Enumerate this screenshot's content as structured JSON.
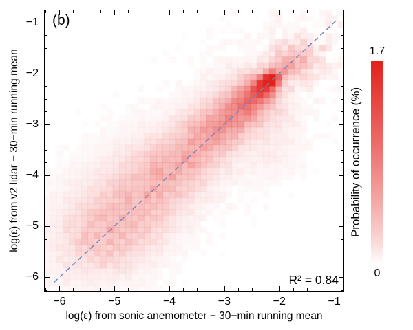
{
  "panel_label": "(b)",
  "annotation": {
    "r_squared_label": "R² = 0.84"
  },
  "axes": {
    "xlabel": "log(ε) from sonic anemometer − 30−min running mean",
    "ylabel": "log(ε) from v2 lidar − 30−min running mean",
    "x_ticks": [
      -6,
      -5,
      -4,
      -3,
      -2,
      -1
    ],
    "y_ticks": [
      -6,
      -5,
      -4,
      -3,
      -2,
      -1
    ]
  },
  "colorbar": {
    "label": "Probability of occurrence (%)",
    "min": 0,
    "max": 1.7,
    "min_label": "0",
    "max_label": "1.7"
  },
  "chart_data": {
    "type": "heatmap",
    "title": "(b)",
    "xlabel": "log(ε) from sonic anemometer − 30−min running mean",
    "ylabel": "log(ε) from v2 lidar − 30−min running mean",
    "x_range": [
      -6.28,
      -0.82
    ],
    "y_range": [
      -6.28,
      -0.75
    ],
    "x_tick_values": [
      -6,
      -5,
      -4,
      -3,
      -2,
      -1
    ],
    "y_tick_values": [
      -6,
      -5,
      -4,
      -3,
      -2,
      -1
    ],
    "colorbar_label": "Probability of occurrence (%)",
    "colorbar_range": [
      0,
      1.7
    ],
    "r_squared": 0.84,
    "heat_color": "#e2211c",
    "identity_line": {
      "style": "dashed",
      "color": "#7286c8",
      "from": [
        -6.1,
        -6.1
      ],
      "to": [
        -0.93,
        -0.93
      ]
    },
    "bins": 48,
    "density_model_blobs": [
      {
        "x": -2.15,
        "y": -2.12,
        "sx": 0.1,
        "sy": 0.09,
        "a": 1.7
      },
      {
        "x": -2.28,
        "y": -2.25,
        "sx": 0.15,
        "sy": 0.13,
        "a": 1.0
      },
      {
        "x": -2.45,
        "y": -2.43,
        "sx": 0.2,
        "sy": 0.17,
        "a": 0.62
      },
      {
        "x": -2.7,
        "y": -2.67,
        "sx": 0.25,
        "sy": 0.22,
        "a": 0.46
      },
      {
        "x": -3.0,
        "y": -2.97,
        "sx": 0.3,
        "sy": 0.26,
        "a": 0.36
      },
      {
        "x": -3.35,
        "y": -3.3,
        "sx": 0.35,
        "sy": 0.3,
        "a": 0.29
      },
      {
        "x": -3.8,
        "y": -3.72,
        "sx": 0.4,
        "sy": 0.34,
        "a": 0.23
      },
      {
        "x": -4.2,
        "y": -4.15,
        "sx": 0.45,
        "sy": 0.4,
        "a": 0.17
      },
      {
        "x": -4.65,
        "y": -4.6,
        "sx": 0.5,
        "sy": 0.45,
        "a": 0.13
      },
      {
        "x": -5.1,
        "y": -5.05,
        "sx": 0.55,
        "sy": 0.5,
        "a": 0.1
      },
      {
        "x": -5.5,
        "y": -5.45,
        "sx": 0.5,
        "sy": 0.5,
        "a": 0.07
      },
      {
        "x": -1.92,
        "y": -1.88,
        "sx": 0.18,
        "sy": 0.16,
        "a": 0.38
      },
      {
        "x": -1.72,
        "y": -1.65,
        "sx": 0.2,
        "sy": 0.2,
        "a": 0.14
      },
      {
        "x": -1.55,
        "y": -1.75,
        "sx": 0.18,
        "sy": 0.22,
        "a": 0.13
      },
      {
        "x": -2.6,
        "y": -2.22,
        "sx": 0.35,
        "sy": 0.28,
        "a": 0.09
      },
      {
        "x": -2.22,
        "y": -2.6,
        "sx": 0.3,
        "sy": 0.35,
        "a": 0.1
      },
      {
        "x": -2.2,
        "y": -3.4,
        "sx": 0.4,
        "sy": 0.5,
        "a": 0.05
      },
      {
        "x": -3.1,
        "y": -2.7,
        "sx": 0.45,
        "sy": 0.35,
        "a": 0.06
      },
      {
        "x": -4.3,
        "y": -3.7,
        "sx": 0.7,
        "sy": 0.55,
        "a": 0.04
      },
      {
        "x": -4.9,
        "y": -5.15,
        "sx": 0.5,
        "sy": 0.4,
        "a": 0.08
      },
      {
        "x": -5.0,
        "y": -4.4,
        "sx": 0.7,
        "sy": 0.55,
        "a": 0.04
      }
    ]
  }
}
